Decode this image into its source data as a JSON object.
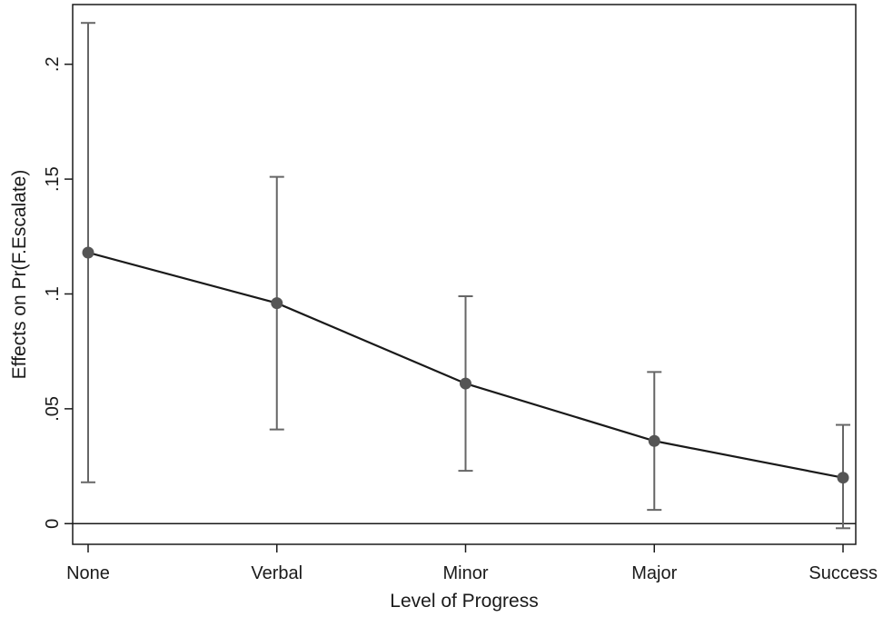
{
  "chart_data": {
    "type": "line",
    "xlabel": "Level of Progress",
    "ylabel": "Effects on Pr(F.Escalate)",
    "categories": [
      "None",
      "Verbal",
      "Minor",
      "Major",
      "Success"
    ],
    "series": [
      {
        "values": [
          0.118,
          0.096,
          0.061,
          0.036,
          0.02
        ],
        "ci_lower": [
          0.018,
          0.041,
          0.023,
          0.006,
          -0.002
        ],
        "ci_upper": [
          0.218,
          0.151,
          0.099,
          0.066,
          0.043
        ]
      }
    ],
    "yticks": [
      0,
      0.05,
      0.1,
      0.15,
      0.2
    ],
    "ytick_labels": [
      "0",
      ".05",
      ".1",
      ".15",
      ".2"
    ],
    "ylim": [
      -0.009,
      0.226
    ],
    "reference_line": 0,
    "grid": false,
    "legend": false,
    "colors": {
      "line": "#1a1a1a",
      "marker": "#555555",
      "errorbar": "#666666",
      "axis": "#1a1a1a"
    }
  }
}
